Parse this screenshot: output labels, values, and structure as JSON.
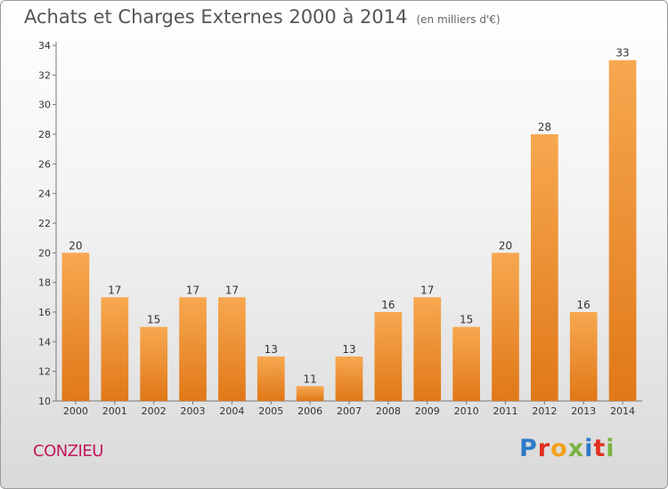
{
  "header": {
    "title": "Achats et Charges Externes 2000 à 2014",
    "unit": "(en milliers d'€)"
  },
  "footer": {
    "commune": "CONZIEU",
    "logo": "Proxiti"
  },
  "colors": {
    "bar_top": "#f7a850",
    "bar_bottom": "#e07818",
    "logo": [
      "#2e7bc8",
      "#e0301e",
      "#f3a11c",
      "#7cb342",
      "#2e7bc8",
      "#e0301e",
      "#7cb342"
    ]
  },
  "chart_data": {
    "type": "bar",
    "categories": [
      "2000",
      "2001",
      "2002",
      "2003",
      "2004",
      "2005",
      "2006",
      "2007",
      "2008",
      "2009",
      "2010",
      "2011",
      "2012",
      "2013",
      "2014"
    ],
    "values": [
      20,
      17,
      15,
      17,
      17,
      13,
      11,
      13,
      16,
      17,
      15,
      20,
      28,
      16,
      33
    ],
    "ylim": [
      10,
      34
    ],
    "yticks": [
      10,
      12,
      14,
      16,
      18,
      20,
      22,
      24,
      26,
      28,
      30,
      32,
      34
    ],
    "grid": false,
    "xlabel": "",
    "ylabel": ""
  }
}
